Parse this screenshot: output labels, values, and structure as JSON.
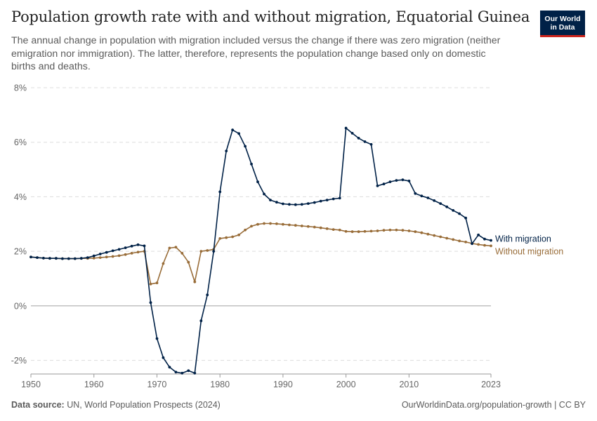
{
  "header": {
    "title": "Population growth rate with and without migration, Equatorial Guinea",
    "subtitle": "The annual change in population with migration included versus the change if there was zero migration (neither emigration nor immigration). The latter, therefore, represents the population change based only on domestic births and deaths."
  },
  "logo": {
    "line1": "Our World",
    "line2": "in Data",
    "bg_color": "#002147",
    "accent_color": "#ce261e"
  },
  "footer": {
    "source_label": "Data source:",
    "source_text": "UN, World Population Prospects (2024)",
    "url": "OurWorldinData.org/population-growth | CC BY"
  },
  "chart_data": {
    "type": "line",
    "ylim": [
      -2.5,
      8
    ],
    "xlim": [
      1950,
      2023
    ],
    "y_ticks": [
      {
        "value": 8,
        "label": "8%"
      },
      {
        "value": 6,
        "label": "6%"
      },
      {
        "value": 4,
        "label": "4%"
      },
      {
        "value": 2,
        "label": "2%"
      },
      {
        "value": 0,
        "label": "0%"
      },
      {
        "value": -2,
        "label": "-2%"
      }
    ],
    "x_ticks": [
      {
        "value": 1950,
        "label": "1950"
      },
      {
        "value": 1960,
        "label": "1960"
      },
      {
        "value": 1970,
        "label": "1970"
      },
      {
        "value": 1980,
        "label": "1980"
      },
      {
        "value": 1990,
        "label": "1990"
      },
      {
        "value": 2000,
        "label": "2000"
      },
      {
        "value": 2010,
        "label": "2010"
      },
      {
        "value": 2023,
        "label": "2023"
      }
    ],
    "grid": "horizontal-dashed",
    "legend": "inline-right",
    "start_year": 1950,
    "series": [
      {
        "name": "With migration",
        "color": "#002147",
        "values": [
          1.79,
          1.77,
          1.75,
          1.74,
          1.74,
          1.73,
          1.73,
          1.73,
          1.74,
          1.77,
          1.83,
          1.9,
          1.96,
          2.02,
          2.07,
          2.13,
          2.19,
          2.24,
          2.2,
          0.12,
          -1.2,
          -1.9,
          -2.25,
          -2.43,
          -2.47,
          -2.38,
          -2.47,
          -0.55,
          0.4,
          2.0,
          4.18,
          5.68,
          6.45,
          6.32,
          5.85,
          5.2,
          4.55,
          4.1,
          3.88,
          3.8,
          3.74,
          3.72,
          3.71,
          3.72,
          3.75,
          3.79,
          3.84,
          3.88,
          3.92,
          3.95,
          6.52,
          6.33,
          6.15,
          6.02,
          5.92,
          4.4,
          4.47,
          4.55,
          4.6,
          4.62,
          4.58,
          4.12,
          4.03,
          3.96,
          3.86,
          3.75,
          3.63,
          3.5,
          3.38,
          3.22,
          2.28,
          2.6,
          2.45,
          2.4
        ]
      },
      {
        "name": "Without migration",
        "color": "#996d39",
        "values": [
          1.79,
          1.77,
          1.75,
          1.74,
          1.74,
          1.73,
          1.73,
          1.73,
          1.74,
          1.74,
          1.75,
          1.77,
          1.79,
          1.81,
          1.84,
          1.88,
          1.93,
          1.97,
          2.0,
          0.8,
          0.84,
          1.55,
          2.12,
          2.15,
          1.93,
          1.6,
          0.88,
          2.0,
          2.03,
          2.07,
          2.47,
          2.5,
          2.53,
          2.6,
          2.78,
          2.92,
          2.99,
          3.02,
          3.02,
          3.01,
          2.99,
          2.97,
          2.95,
          2.93,
          2.91,
          2.89,
          2.86,
          2.83,
          2.8,
          2.78,
          2.73,
          2.72,
          2.72,
          2.73,
          2.74,
          2.75,
          2.77,
          2.78,
          2.78,
          2.77,
          2.75,
          2.72,
          2.68,
          2.63,
          2.58,
          2.53,
          2.48,
          2.43,
          2.38,
          2.34,
          2.29,
          2.25,
          2.22,
          2.2
        ]
      }
    ]
  }
}
